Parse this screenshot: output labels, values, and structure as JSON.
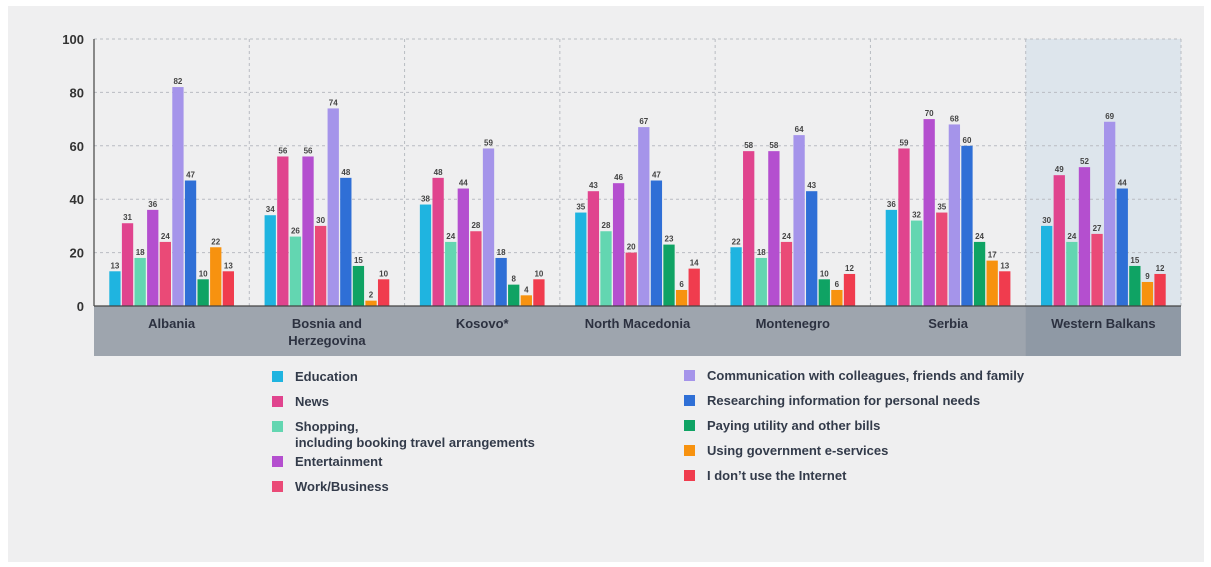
{
  "chart_data": {
    "type": "bar",
    "ylim": [
      0,
      100
    ],
    "yticks": [
      "0",
      "20",
      "40",
      "60",
      "80",
      "100"
    ],
    "grid": true,
    "legend_position": "bottom",
    "categories": [
      "Albania",
      "Bosnia and Herzegovina",
      "Kosovo*",
      "North Macedonia",
      "Montenegro",
      "Serbia",
      "Western Balkans"
    ],
    "category_lines": [
      [
        "Albania"
      ],
      [
        "Bosnia and",
        "Herzegovina"
      ],
      [
        "Kosovo*"
      ],
      [
        "North Macedonia"
      ],
      [
        "Montenegro"
      ],
      [
        "Serbia"
      ],
      [
        "Western Balkans"
      ]
    ],
    "highlighted_category": "Western Balkans",
    "series": [
      {
        "name": "Education",
        "color": "#1fb4e0",
        "values": [
          13,
          34,
          38,
          35,
          22,
          36,
          30
        ]
      },
      {
        "name": "News",
        "color": "#e0448e",
        "values": [
          31,
          56,
          48,
          43,
          58,
          59,
          49
        ]
      },
      {
        "name": "Shopping, including booking travel arrangements",
        "lines": [
          "Shopping,",
          "including booking travel arrangements"
        ],
        "color": "#63d6b1",
        "values": [
          18,
          26,
          24,
          28,
          18,
          32,
          24
        ]
      },
      {
        "name": "Entertainment",
        "color": "#b44fcf",
        "values": [
          36,
          56,
          44,
          46,
          58,
          70,
          52
        ]
      },
      {
        "name": "Work/Business",
        "color": "#ea4a77",
        "values": [
          24,
          30,
          28,
          20,
          24,
          35,
          27
        ]
      },
      {
        "name": "Communication with colleagues, friends and family",
        "color": "#a594ea",
        "values": [
          82,
          74,
          59,
          67,
          64,
          68,
          69
        ]
      },
      {
        "name": "Researching information for personal needs",
        "color": "#2f6fd6",
        "values": [
          47,
          48,
          18,
          47,
          43,
          60,
          44
        ]
      },
      {
        "name": "Paying utility and other bills",
        "color": "#0fa364",
        "values": [
          10,
          15,
          8,
          23,
          10,
          24,
          15
        ]
      },
      {
        "name": "Using government e-services",
        "color": "#f7920f",
        "values": [
          22,
          2,
          4,
          6,
          6,
          17,
          9
        ]
      },
      {
        "name": "I don’t use the Internet",
        "color": "#f03c4e",
        "values": [
          13,
          10,
          10,
          14,
          12,
          13,
          12
        ]
      }
    ]
  }
}
